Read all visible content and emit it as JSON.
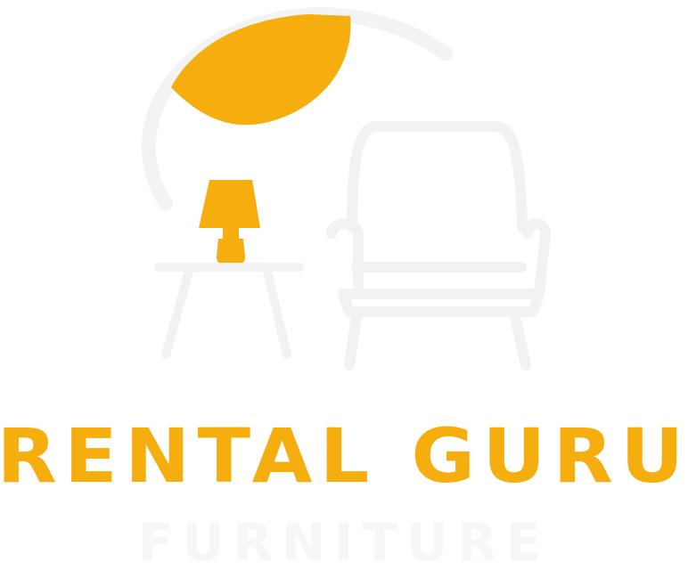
{
  "logo": {
    "name": "RENTAL GURU",
    "tagline": "FURNITURE"
  },
  "colors": {
    "accent": "#F5AE0D",
    "line": "#F2F2F2",
    "background": "#FFFFFF"
  },
  "icons": [
    "leaf-icon",
    "lamp-icon",
    "side-table-icon",
    "armchair-icon"
  ]
}
